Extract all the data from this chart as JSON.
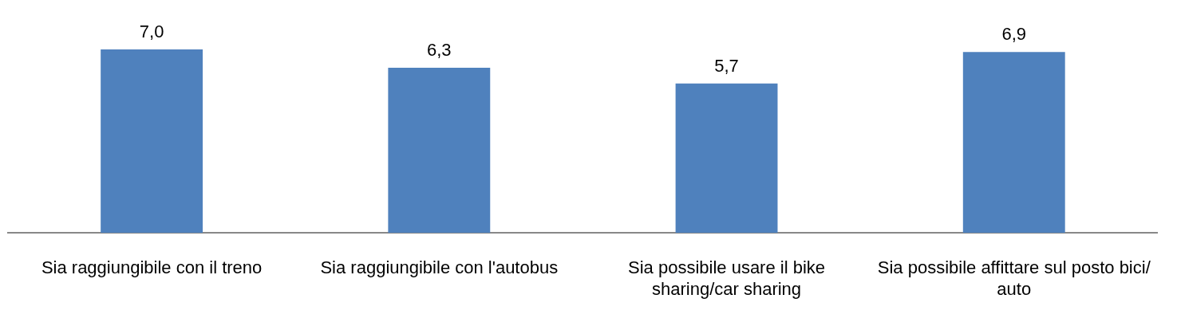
{
  "chart_data": {
    "type": "bar",
    "categories": [
      "Sia raggiungibile con il treno",
      "Sia raggiungibile con l'autobus",
      "Sia possibile usare il bike sharing/car sharing",
      "Sia possibile affittare sul posto bici/ auto"
    ],
    "values": [
      7.0,
      6.3,
      5.7,
      6.9
    ],
    "value_labels": [
      "7,0",
      "6,3",
      "5,7",
      "6,9"
    ],
    "color": "#4f81bd",
    "grid": false,
    "legend": false,
    "tick_labels": "x"
  }
}
